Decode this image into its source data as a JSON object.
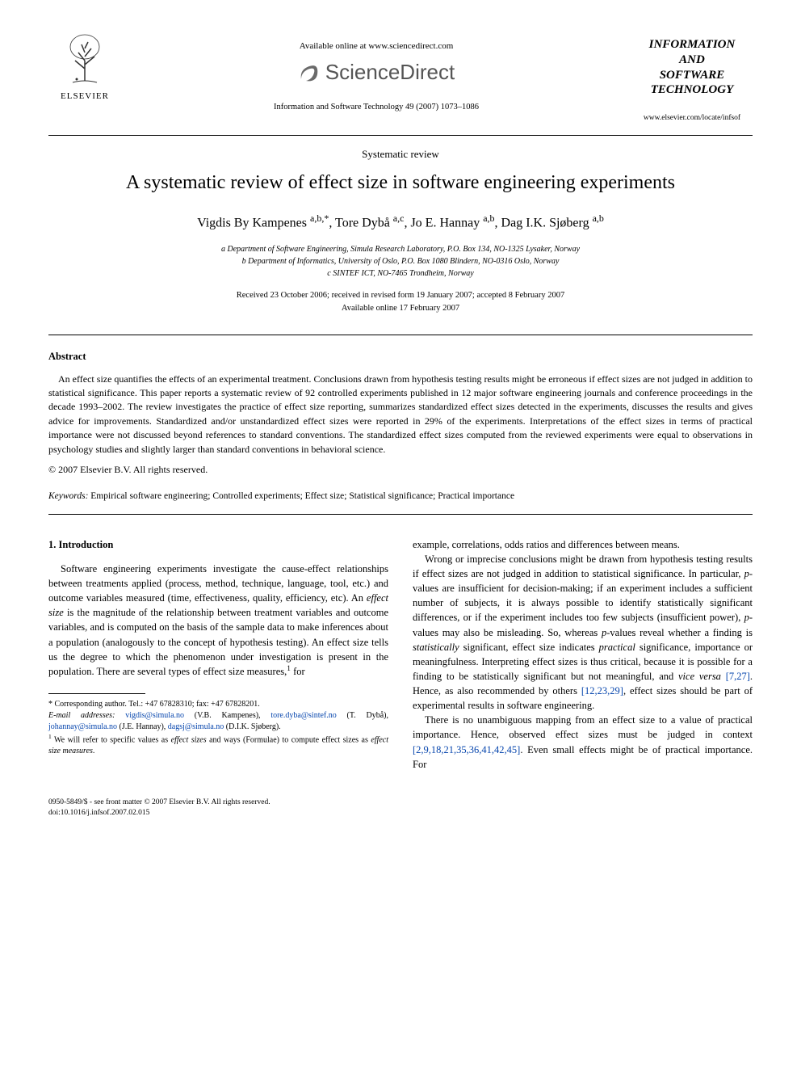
{
  "header": {
    "elsevier_label": "ELSEVIER",
    "available_online": "Available online at www.sciencedirect.com",
    "sd_brand": "ScienceDirect",
    "journal_ref_line": "Information and Software Technology 49 (2007) 1073–1086",
    "journal_box_line1": "INFORMATION",
    "journal_box_line2": "AND",
    "journal_box_line3": "SOFTWARE",
    "journal_box_line4": "TECHNOLOGY",
    "journal_link": "www.elsevier.com/locate/infsof"
  },
  "article": {
    "type": "Systematic review",
    "title": "A systematic review of effect size in software engineering experiments",
    "authors_html": "Vigdis By Kampenes <sup>a,b,*</sup>, Tore Dybå <sup>a,c</sup>, Jo E. Hannay <sup>a,b</sup>, Dag I.K. Sjøberg <sup>a,b</sup>",
    "affil_a": "a Department of Software Engineering, Simula Research Laboratory, P.O. Box 134, NO-1325 Lysaker, Norway",
    "affil_b": "b Department of Informatics, University of Oslo, P.O. Box 1080 Blindern, NO-0316 Oslo, Norway",
    "affil_c": "c SINTEF ICT, NO-7465 Trondheim, Norway",
    "dates_line1": "Received 23 October 2006; received in revised form 19 January 2007; accepted 8 February 2007",
    "dates_line2": "Available online 17 February 2007"
  },
  "abstract": {
    "heading": "Abstract",
    "text": "An effect size quantifies the effects of an experimental treatment. Conclusions drawn from hypothesis testing results might be erroneous if effect sizes are not judged in addition to statistical significance. This paper reports a systematic review of 92 controlled experiments published in 12 major software engineering journals and conference proceedings in the decade 1993–2002. The review investigates the practice of effect size reporting, summarizes standardized effect sizes detected in the experiments, discusses the results and gives advice for improvements. Standardized and/or unstandardized effect sizes were reported in 29% of the experiments. Interpretations of the effect sizes in terms of practical importance were not discussed beyond references to standard conventions. The standardized effect sizes computed from the reviewed experiments were equal to observations in psychology studies and slightly larger than standard conventions in behavioral science.",
    "copyright": "© 2007 Elsevier B.V. All rights reserved.",
    "keywords_label": "Keywords:",
    "keywords": " Empirical software engineering; Controlled experiments; Effect size; Statistical significance; Practical importance"
  },
  "body": {
    "section1_heading": "1. Introduction",
    "col1_p1_a": "Software engineering experiments investigate the cause-effect relationships between treatments applied (process, method, technique, language, tool, etc.) and outcome variables measured (time, effectiveness, quality, efficiency, etc). An ",
    "col1_p1_b_em": "effect size",
    "col1_p1_c": " is the magnitude of the relationship between treatment variables and outcome variables, and is computed on the basis of the sample data to make inferences about a population (analogously to the concept of hypothesis testing). An effect size tells us the degree to which the phenomenon under investigation is present in the population. There are several types of effect size measures,",
    "col1_p1_sup": "1",
    "col1_p1_d": " for",
    "col2_p0": "example, correlations, odds ratios and differences between means.",
    "col2_p1_a": "Wrong or imprecise conclusions might be drawn from hypothesis testing results if effect sizes are not judged in addition to statistical significance. In particular, ",
    "col2_p1_pval1": "p",
    "col2_p1_b": "-values are insufficient for decision-making; if an experiment includes a sufficient number of subjects, it is always possible to identify statistically significant differences, or if the experiment includes too few subjects (insufficient power), ",
    "col2_p1_pval2": "p",
    "col2_p1_c": "-values may also be misleading. So, whereas ",
    "col2_p1_pval3": "p",
    "col2_p1_d": "-values reveal whether a finding is ",
    "col2_p1_em1": "statistically",
    "col2_p1_e": " significant, effect size indicates ",
    "col2_p1_em2": "practical",
    "col2_p1_f": " significance, importance or meaningfulness. Interpreting effect sizes is thus critical, because it is possible for a finding to be statistically significant but not meaningful, and ",
    "col2_p1_em3": "vice versa",
    "col2_p1_g": " ",
    "col2_p1_ref1": "[7,27]",
    "col2_p1_h": ". Hence, as also recommended by others ",
    "col2_p1_ref2": "[12,23,29]",
    "col2_p1_i": ", effect sizes should be part of experimental results in software engineering.",
    "col2_p2_a": "There is no unambiguous mapping from an effect size to a value of practical importance. Hence, observed effect sizes must be judged in context ",
    "col2_p2_ref": "[2,9,18,21,35,36,41,42,45]",
    "col2_p2_b": ". Even small effects might be of practical importance. For"
  },
  "footnotes": {
    "corr_label": "* Corresponding author. Tel.: +47 67828310; fax: +47 67828201.",
    "email_label": "E-mail addresses:",
    "e1": "vigdis@simula.no",
    "n1": " (V.B. Kampenes), ",
    "e2": "tore.dyba@sintef.no",
    "n2": " (T. Dybå), ",
    "e3": "johannay@simula.no",
    "n3": " (J.E. Hannay), ",
    "e4": "dagsj@simula.no",
    "n4": " (D.I.K. Sjøberg).",
    "fn1_a": "1 We will refer to specific values as ",
    "fn1_em1": "effect sizes",
    "fn1_b": " and ways (Formulae) to compute effect sizes as ",
    "fn1_em2": "effect size measures",
    "fn1_c": "."
  },
  "footer": {
    "issn": "0950-5849/$ - see front matter © 2007 Elsevier B.V. All rights reserved.",
    "doi": "doi:10.1016/j.infsof.2007.02.015"
  },
  "colors": {
    "text": "#000000",
    "link": "#0645ad",
    "sd_gray": "#6a6a6a",
    "background": "#ffffff"
  }
}
